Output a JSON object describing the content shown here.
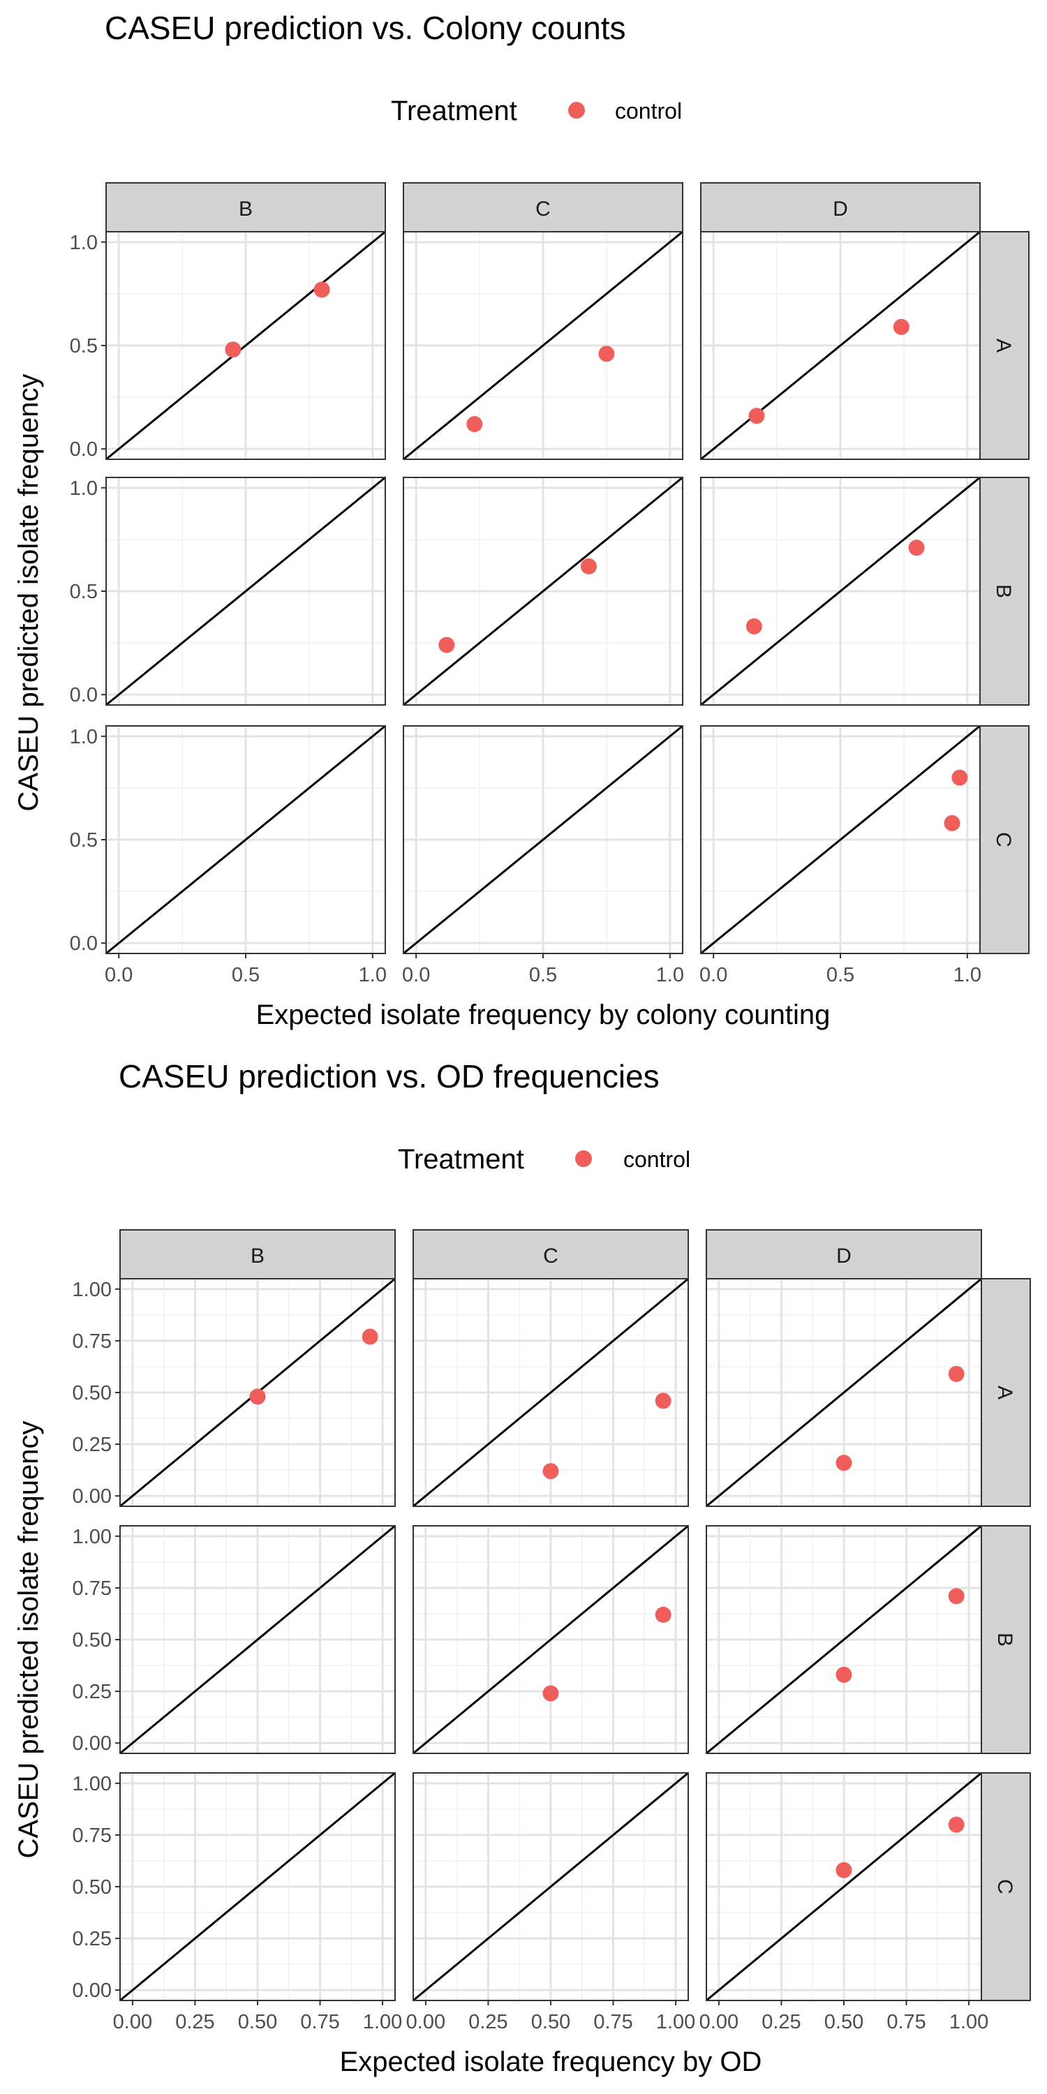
{
  "chart_data": [
    {
      "type": "scatter",
      "title": "CASEU prediction vs. Colony counts",
      "xlabel": "Expected isolate frequency by colony counting",
      "ylabel": "CASEU predicted isolate frequency",
      "legend": {
        "title": "Treatment",
        "placement": "top",
        "entries": [
          {
            "label": "control",
            "color": "#F05E5B"
          }
        ]
      },
      "col_facets": [
        "B",
        "C",
        "D"
      ],
      "row_facets": [
        "A",
        "B",
        "C"
      ],
      "xlim": [
        -0.05,
        1.05
      ],
      "ylim": [
        -0.05,
        1.05
      ],
      "x_ticks": [
        0,
        0.5,
        1
      ],
      "x_tick_labels": [
        "0.0",
        "0.5",
        "1.0"
      ],
      "y_ticks": [
        0,
        0.5,
        1
      ],
      "y_tick_labels": [
        "0.0",
        "0.5",
        "1.0"
      ],
      "reference_line": "y = x",
      "grid": true,
      "panels": [
        {
          "row": "A",
          "col": "B",
          "points": [
            {
              "x": 0.45,
              "y": 0.48
            },
            {
              "x": 0.8,
              "y": 0.77
            }
          ]
        },
        {
          "row": "A",
          "col": "C",
          "points": [
            {
              "x": 0.23,
              "y": 0.12
            },
            {
              "x": 0.75,
              "y": 0.46
            }
          ]
        },
        {
          "row": "A",
          "col": "D",
          "points": [
            {
              "x": 0.17,
              "y": 0.16
            },
            {
              "x": 0.74,
              "y": 0.59
            }
          ]
        },
        {
          "row": "B",
          "col": "B",
          "points": []
        },
        {
          "row": "B",
          "col": "C",
          "points": [
            {
              "x": 0.12,
              "y": 0.24
            },
            {
              "x": 0.68,
              "y": 0.62
            }
          ]
        },
        {
          "row": "B",
          "col": "D",
          "points": [
            {
              "x": 0.16,
              "y": 0.33
            },
            {
              "x": 0.8,
              "y": 0.71
            }
          ]
        },
        {
          "row": "C",
          "col": "B",
          "points": []
        },
        {
          "row": "C",
          "col": "C",
          "points": []
        },
        {
          "row": "C",
          "col": "D",
          "points": [
            {
              "x": 0.94,
              "y": 0.58
            },
            {
              "x": 0.97,
              "y": 0.8
            }
          ]
        }
      ]
    },
    {
      "type": "scatter",
      "title": "CASEU prediction vs. OD frequencies",
      "xlabel": "Expected isolate frequency by OD",
      "ylabel": "CASEU predicted isolate frequency",
      "legend": {
        "title": "Treatment",
        "placement": "top",
        "entries": [
          {
            "label": "control",
            "color": "#F05E5B"
          }
        ]
      },
      "col_facets": [
        "B",
        "C",
        "D"
      ],
      "row_facets": [
        "A",
        "B",
        "C"
      ],
      "xlim": [
        -0.05,
        1.05
      ],
      "ylim": [
        -0.05,
        1.05
      ],
      "x_ticks": [
        0,
        0.25,
        0.5,
        0.75,
        1
      ],
      "x_tick_labels": [
        "0.00",
        "0.25",
        "0.50",
        "0.75",
        "1.00"
      ],
      "y_ticks": [
        0,
        0.25,
        0.5,
        0.75,
        1
      ],
      "y_tick_labels": [
        "0.00",
        "0.25",
        "0.50",
        "0.75",
        "1.00"
      ],
      "reference_line": "y = x",
      "grid": true,
      "panels": [
        {
          "row": "A",
          "col": "B",
          "points": [
            {
              "x": 0.5,
              "y": 0.48
            },
            {
              "x": 0.95,
              "y": 0.77
            }
          ]
        },
        {
          "row": "A",
          "col": "C",
          "points": [
            {
              "x": 0.5,
              "y": 0.12
            },
            {
              "x": 0.95,
              "y": 0.46
            }
          ]
        },
        {
          "row": "A",
          "col": "D",
          "points": [
            {
              "x": 0.5,
              "y": 0.16
            },
            {
              "x": 0.95,
              "y": 0.59
            }
          ]
        },
        {
          "row": "B",
          "col": "B",
          "points": []
        },
        {
          "row": "B",
          "col": "C",
          "points": [
            {
              "x": 0.5,
              "y": 0.24
            },
            {
              "x": 0.95,
              "y": 0.62
            }
          ]
        },
        {
          "row": "B",
          "col": "D",
          "points": [
            {
              "x": 0.5,
              "y": 0.33
            },
            {
              "x": 0.95,
              "y": 0.71
            }
          ]
        },
        {
          "row": "C",
          "col": "B",
          "points": []
        },
        {
          "row": "C",
          "col": "C",
          "points": []
        },
        {
          "row": "C",
          "col": "D",
          "points": [
            {
              "x": 0.5,
              "y": 0.58
            },
            {
              "x": 0.95,
              "y": 0.8
            }
          ]
        }
      ]
    }
  ]
}
